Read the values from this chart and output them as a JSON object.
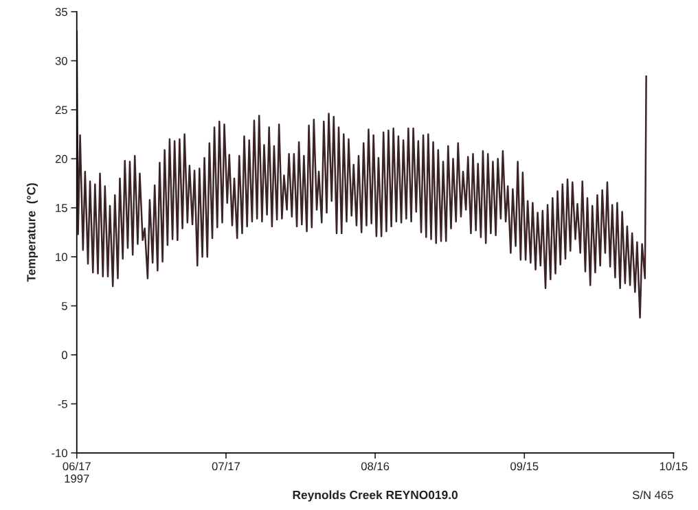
{
  "chart_data": {
    "type": "line",
    "xlabel": "Reynolds Creek REYNO019.0",
    "ylabel": "Temperature  (°C)",
    "annotations": [
      "S/N 465"
    ],
    "xlim": [
      "1997-06-17",
      "1997-10-15"
    ],
    "xticks": [
      {
        "value": "1997-06-17",
        "label": "06/17\n1997"
      },
      {
        "value": "1997-07-17",
        "label": "07/17"
      },
      {
        "value": "1997-08-16",
        "label": "08/16"
      },
      {
        "value": "1997-09-15",
        "label": "09/15"
      },
      {
        "value": "1997-10-15",
        "label": "10/15"
      }
    ],
    "ylim": [
      -10,
      35
    ],
    "yticks": [
      -10,
      -5,
      0,
      5,
      10,
      15,
      20,
      25,
      30,
      35
    ],
    "grid": false,
    "series": [
      {
        "color": "#3b2326",
        "x": [
          "1997-06-17T00:00",
          "1997-06-17T06:00",
          "1997-06-17T16:00",
          "1997-06-18T06:00",
          "1997-06-18T16:00",
          "1997-06-19T06:00",
          "1997-06-19T16:00",
          "1997-06-20T06:00",
          "1997-06-20T16:00",
          "1997-06-21T06:00",
          "1997-06-21T16:00",
          "1997-06-22T06:00",
          "1997-06-22T16:00",
          "1997-06-23T06:00",
          "1997-06-23T16:00",
          "1997-06-24T06:00",
          "1997-06-24T16:00",
          "1997-06-25T06:00",
          "1997-06-25T16:00",
          "1997-06-26T06:00",
          "1997-06-26T16:00",
          "1997-06-27T06:00",
          "1997-06-27T16:00",
          "1997-06-28T06:00",
          "1997-06-28T16:00",
          "1997-06-29T06:00",
          "1997-06-29T16:00",
          "1997-06-30T06:00",
          "1997-06-30T16:00",
          "1997-07-01T06:00",
          "1997-07-01T16:00",
          "1997-07-02T06:00",
          "1997-07-02T16:00",
          "1997-07-03T06:00",
          "1997-07-03T16:00",
          "1997-07-04T06:00",
          "1997-07-04T16:00",
          "1997-07-05T06:00",
          "1997-07-05T16:00",
          "1997-07-06T06:00",
          "1997-07-06T16:00",
          "1997-07-07T06:00",
          "1997-07-07T16:00",
          "1997-07-08T06:00",
          "1997-07-08T16:00",
          "1997-07-09T06:00",
          "1997-07-09T16:00",
          "1997-07-10T06:00",
          "1997-07-10T16:00",
          "1997-07-11T06:00",
          "1997-07-11T16:00",
          "1997-07-12T06:00",
          "1997-07-12T16:00",
          "1997-07-13T06:00",
          "1997-07-13T16:00",
          "1997-07-14T06:00",
          "1997-07-14T16:00",
          "1997-07-15T06:00",
          "1997-07-15T16:00",
          "1997-07-16T06:00",
          "1997-07-16T16:00",
          "1997-07-17T06:00",
          "1997-07-17T16:00",
          "1997-07-18T06:00",
          "1997-07-18T16:00",
          "1997-07-19T06:00",
          "1997-07-19T16:00",
          "1997-07-20T06:00",
          "1997-07-20T16:00",
          "1997-07-21T06:00",
          "1997-07-21T16:00",
          "1997-07-22T06:00",
          "1997-07-22T16:00",
          "1997-07-23T06:00",
          "1997-07-23T16:00",
          "1997-07-24T06:00",
          "1997-07-24T16:00",
          "1997-07-25T06:00",
          "1997-07-25T16:00",
          "1997-07-26T06:00",
          "1997-07-26T16:00",
          "1997-07-27T06:00",
          "1997-07-27T16:00",
          "1997-07-28T06:00",
          "1997-07-28T16:00",
          "1997-07-29T06:00",
          "1997-07-29T16:00",
          "1997-07-30T06:00",
          "1997-07-30T16:00",
          "1997-07-31T06:00",
          "1997-07-31T16:00",
          "1997-08-01T06:00",
          "1997-08-01T16:00",
          "1997-08-02T06:00",
          "1997-08-02T16:00",
          "1997-08-03T06:00",
          "1997-08-03T16:00",
          "1997-08-04T06:00",
          "1997-08-04T16:00",
          "1997-08-05T06:00",
          "1997-08-05T16:00",
          "1997-08-06T06:00",
          "1997-08-06T16:00",
          "1997-08-07T06:00",
          "1997-08-07T16:00",
          "1997-08-08T06:00",
          "1997-08-08T16:00",
          "1997-08-09T06:00",
          "1997-08-09T16:00",
          "1997-08-10T06:00",
          "1997-08-10T16:00",
          "1997-08-11T06:00",
          "1997-08-11T16:00",
          "1997-08-12T06:00",
          "1997-08-12T16:00",
          "1997-08-13T06:00",
          "1997-08-13T16:00",
          "1997-08-14T06:00",
          "1997-08-14T16:00",
          "1997-08-15T06:00",
          "1997-08-15T16:00",
          "1997-08-16T06:00",
          "1997-08-16T16:00",
          "1997-08-17T06:00",
          "1997-08-17T16:00",
          "1997-08-18T06:00",
          "1997-08-18T16:00",
          "1997-08-19T06:00",
          "1997-08-19T16:00",
          "1997-08-20T06:00",
          "1997-08-20T16:00",
          "1997-08-21T06:00",
          "1997-08-21T16:00",
          "1997-08-22T06:00",
          "1997-08-22T16:00",
          "1997-08-23T06:00",
          "1997-08-23T16:00",
          "1997-08-24T06:00",
          "1997-08-24T16:00",
          "1997-08-25T06:00",
          "1997-08-25T16:00",
          "1997-08-26T06:00",
          "1997-08-26T16:00",
          "1997-08-27T06:00",
          "1997-08-27T16:00",
          "1997-08-28T06:00",
          "1997-08-28T16:00",
          "1997-08-29T06:00",
          "1997-08-29T16:00",
          "1997-08-30T06:00",
          "1997-08-30T16:00",
          "1997-08-31T06:00",
          "1997-08-31T16:00",
          "1997-09-01T06:00",
          "1997-09-01T16:00",
          "1997-09-02T06:00",
          "1997-09-02T16:00",
          "1997-09-03T06:00",
          "1997-09-03T16:00",
          "1997-09-04T06:00",
          "1997-09-04T16:00",
          "1997-09-05T06:00",
          "1997-09-05T16:00",
          "1997-09-06T06:00",
          "1997-09-06T16:00",
          "1997-09-07T06:00",
          "1997-09-07T16:00",
          "1997-09-08T06:00",
          "1997-09-08T16:00",
          "1997-09-09T06:00",
          "1997-09-09T16:00",
          "1997-09-10T06:00",
          "1997-09-10T16:00",
          "1997-09-11T06:00",
          "1997-09-11T16:00",
          "1997-09-12T06:00",
          "1997-09-12T16:00",
          "1997-09-13T06:00",
          "1997-09-13T16:00",
          "1997-09-14T06:00",
          "1997-09-14T16:00",
          "1997-09-15T06:00",
          "1997-09-15T16:00",
          "1997-09-16T06:00",
          "1997-09-16T16:00",
          "1997-09-17T06:00",
          "1997-09-17T16:00",
          "1997-09-18T06:00",
          "1997-09-18T16:00",
          "1997-09-19T06:00",
          "1997-09-19T16:00",
          "1997-09-20T06:00",
          "1997-09-20T16:00",
          "1997-09-21T06:00",
          "1997-09-21T16:00",
          "1997-09-22T06:00",
          "1997-09-22T16:00",
          "1997-09-23T06:00",
          "1997-09-23T16:00",
          "1997-09-24T06:00",
          "1997-09-24T16:00",
          "1997-09-25T06:00",
          "1997-09-25T16:00",
          "1997-09-26T06:00",
          "1997-09-26T16:00",
          "1997-09-27T06:00",
          "1997-09-27T16:00",
          "1997-09-28T06:00",
          "1997-09-28T16:00",
          "1997-09-29T06:00",
          "1997-09-29T16:00",
          "1997-09-30T06:00",
          "1997-09-30T16:00",
          "1997-10-01T06:00",
          "1997-10-01T16:00",
          "1997-10-02T06:00",
          "1997-10-02T16:00",
          "1997-10-03T06:00",
          "1997-10-03T16:00",
          "1997-10-04T06:00",
          "1997-10-04T16:00",
          "1997-10-05T06:00",
          "1997-10-05T16:00",
          "1997-10-06T06:00",
          "1997-10-06T16:00",
          "1997-10-07T06:00",
          "1997-10-07T16:00",
          "1997-10-08T06:00",
          "1997-10-08T16:00",
          "1997-10-09T06:00",
          "1997-10-09T12:00"
        ],
        "values": [
          33.0,
          12.3,
          22.4,
          10.7,
          18.7,
          9.3,
          17.7,
          8.4,
          17.4,
          8.3,
          18.5,
          8.0,
          17.2,
          8.0,
          15.2,
          7.0,
          16.3,
          7.8,
          18.0,
          9.8,
          19.8,
          10.9,
          19.7,
          10.2,
          20.3,
          11.3,
          18.5,
          11.7,
          12.9,
          7.8,
          15.8,
          9.4,
          17.3,
          8.6,
          19.6,
          9.5,
          20.9,
          11.2,
          22.0,
          11.8,
          21.8,
          11.7,
          22.0,
          12.9,
          22.5,
          13.5,
          19.3,
          13.3,
          18.8,
          9.1,
          19.0,
          10.0,
          20.1,
          10.0,
          21.6,
          11.9,
          23.2,
          13.0,
          23.8,
          13.5,
          23.5,
          15.5,
          20.4,
          13.2,
          18.0,
          11.9,
          20.3,
          12.4,
          22.3,
          13.1,
          21.9,
          13.6,
          23.9,
          13.9,
          24.4,
          13.6,
          21.4,
          14.3,
          23.2,
          13.1,
          21.3,
          13.8,
          23.5,
          13.9,
          18.3,
          14.8,
          20.5,
          14.1,
          20.5,
          13.1,
          21.7,
          13.3,
          20.3,
          12.6,
          23.4,
          13.0,
          24.0,
          14.8,
          18.7,
          13.5,
          23.8,
          14.5,
          24.6,
          15.7,
          24.3,
          12.4,
          23.2,
          12.4,
          22.5,
          13.6,
          22.0,
          14.2,
          19.4,
          13.2,
          20.3,
          12.5,
          21.6,
          13.2,
          23.0,
          13.4,
          22.4,
          12.1,
          20.1,
          12.1,
          22.7,
          12.6,
          22.9,
          13.1,
          23.1,
          13.6,
          22.3,
          13.5,
          21.9,
          13.9,
          23.1,
          13.6,
          23.1,
          14.6,
          21.8,
          12.5,
          22.4,
          12.0,
          22.5,
          11.8,
          21.7,
          11.4,
          20.9,
          11.6,
          19.7,
          11.6,
          21.3,
          12.9,
          20.0,
          13.6,
          21.6,
          14.1,
          18.7,
          14.8,
          20.2,
          12.4,
          20.5,
          12.7,
          19.5,
          12.0,
          20.8,
          11.4,
          20.5,
          12.4,
          19.7,
          12.2,
          20.0,
          13.9,
          20.8,
          13.6,
          17.2,
          10.4,
          16.9,
          11.1,
          19.7,
          9.7,
          18.6,
          9.7,
          15.7,
          9.4,
          15.5,
          8.7,
          14.5,
          9.1,
          14.7,
          6.8,
          15.3,
          7.7,
          16.0,
          8.3,
          16.7,
          9.2,
          17.4,
          9.8,
          17.9,
          10.6,
          17.6,
          11.8,
          15.4,
          10.4,
          17.7,
          8.5,
          16.0,
          7.1,
          15.2,
          8.4,
          16.3,
          9.1,
          16.8,
          10.4,
          17.6,
          9.0,
          15.3,
          7.9,
          15.5,
          6.8,
          14.6,
          7.3,
          13.1,
          7.1,
          12.4,
          6.4,
          11.5,
          3.8,
          11.3,
          7.8,
          28.4
        ]
      }
    ]
  }
}
